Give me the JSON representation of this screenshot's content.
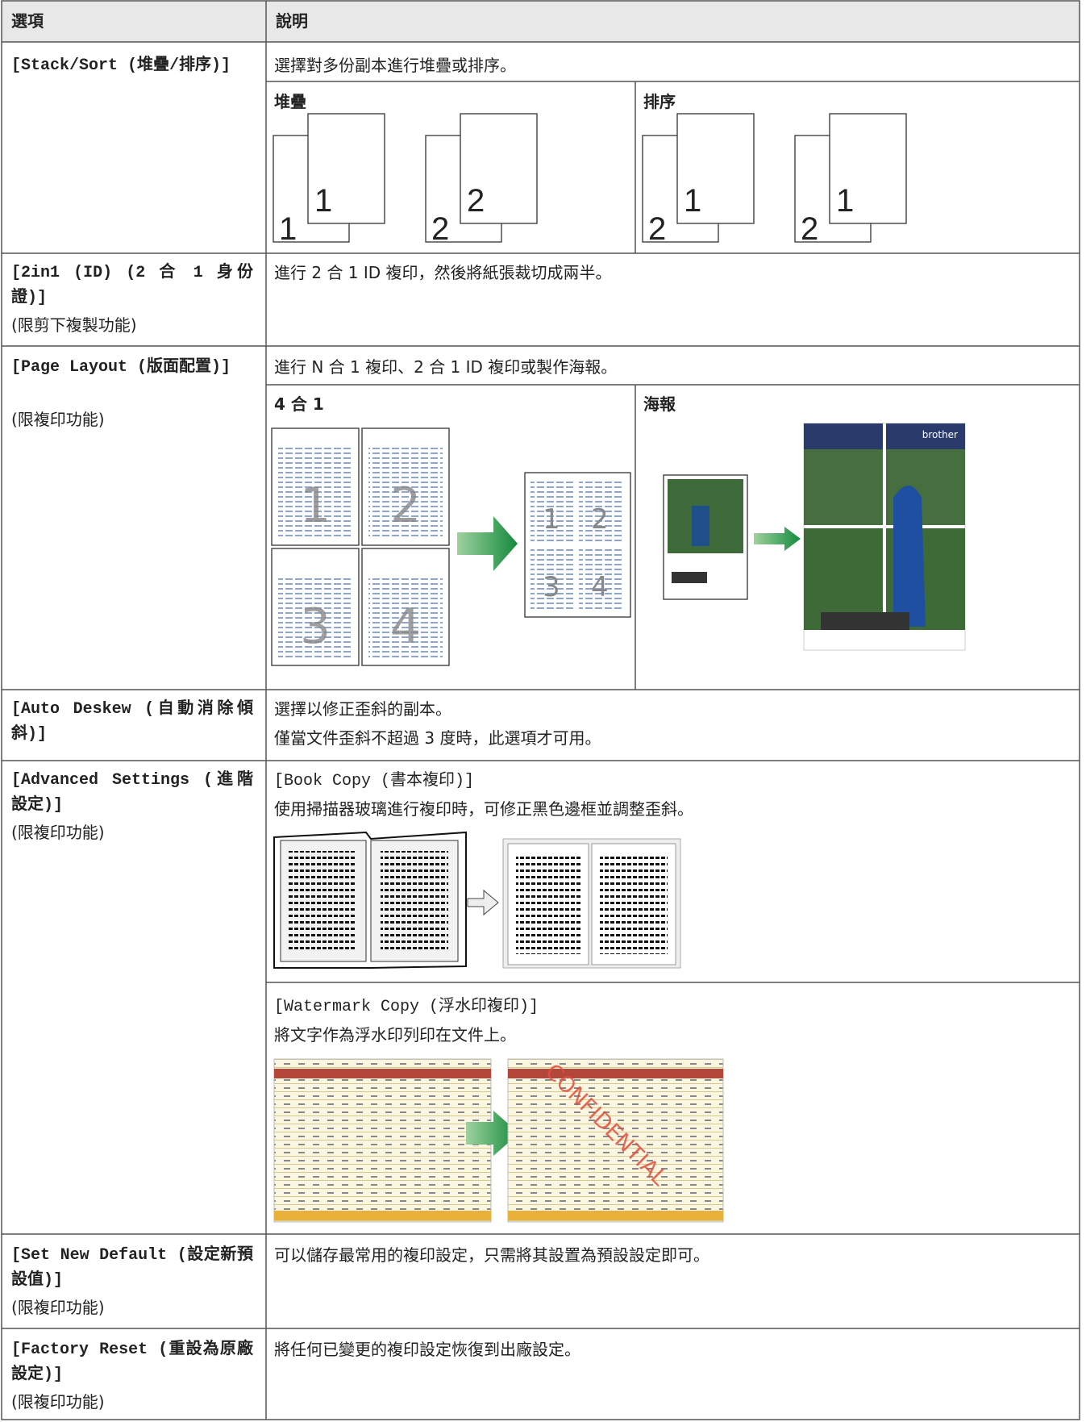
{
  "header": {
    "option": "選項",
    "description": "說明"
  },
  "rows": [
    {
      "option": "[Stack/Sort (堆疊/排序)]",
      "description": [
        "選擇對多份副本進行堆疊或排序。"
      ],
      "panels": [
        {
          "label": "堆疊",
          "pages": [
            [
              "1",
              "1"
            ],
            [
              "2",
              "2"
            ]
          ]
        },
        {
          "label": "排序",
          "pages": [
            [
              "2",
              "1"
            ],
            [
              "2",
              "1"
            ]
          ]
        }
      ]
    },
    {
      "option": "[2in1 (ID) (2 合 1 身份證)]",
      "note": "(限剪下複製功能)",
      "description": [
        "進行 2 合 1 ID 複印，然後將紙張裁切成兩半。"
      ]
    },
    {
      "option": "[Page Layout (版面配置)]",
      "note": "(限複印功能)",
      "description": [
        "進行 N 合 1 複印、2 合 1 ID 複印或製作海報。"
      ],
      "panels": [
        {
          "label": "4 合 1",
          "page_numbers": [
            "1",
            "2",
            "3",
            "4"
          ]
        },
        {
          "label": "海報",
          "brand": "brother"
        }
      ]
    },
    {
      "option": "[Auto Deskew (自動消除傾斜)]",
      "description": [
        "選擇以修正歪斜的副本。",
        "僅當文件歪斜不超過 3 度時，此選項才可用。"
      ]
    },
    {
      "option": "[Advanced Settings (進階設定)]",
      "note": "(限複印功能)",
      "sections": [
        {
          "title": "[Book Copy (書本複印)]",
          "text": "使用掃描器玻璃進行複印時，可修正黑色邊框並調整歪斜。"
        },
        {
          "title": "[Watermark Copy (浮水印複印)]",
          "text": "將文字作為浮水印列印在文件上。",
          "watermark": "CONFIDENTIAL"
        }
      ]
    },
    {
      "option": "[Set New Default (設定新預設值)]",
      "note": "(限複印功能)",
      "description": [
        "可以儲存最常用的複印設定，只需將其設置為預設設定即可。"
      ]
    },
    {
      "option": "[Factory Reset (重設為原廠設定)]",
      "note": "(限複印功能)",
      "description": [
        "將任何已變更的複印設定恢復到出廠設定。"
      ]
    }
  ]
}
